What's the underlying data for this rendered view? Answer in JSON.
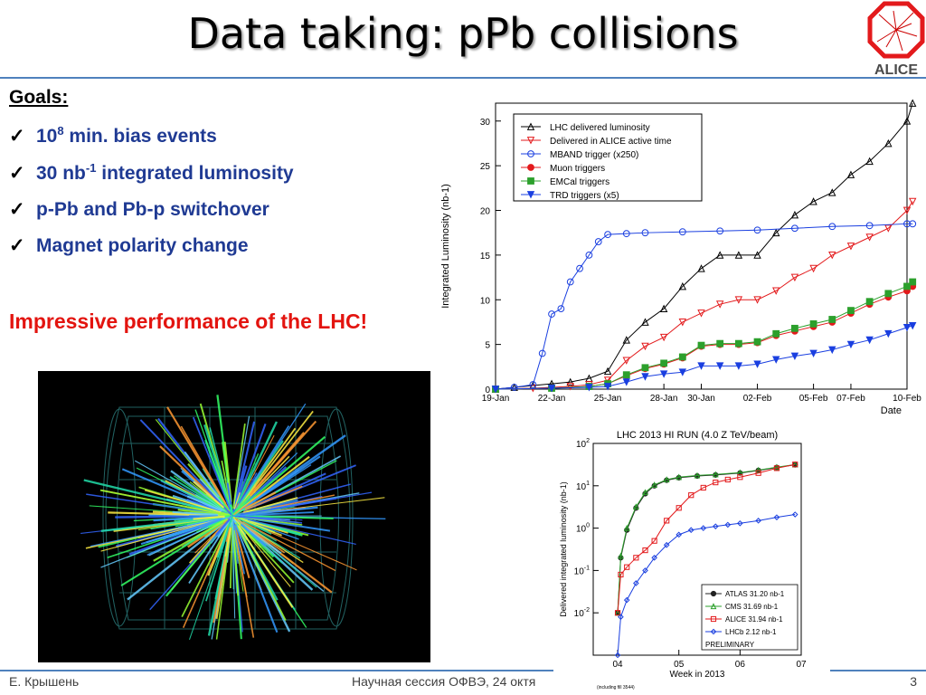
{
  "slide": {
    "title": "Data taking: pPb collisions",
    "logo_text": "ALICE",
    "goals_heading": "Goals:",
    "goals": [
      {
        "check": "✓",
        "pre": "10",
        "sup": "8",
        "post": " min. bias events"
      },
      {
        "check": "✓",
        "pre": "30 nb",
        "sup": "-1",
        "post": " integrated luminosity"
      },
      {
        "check": "✓",
        "pre": "p-Pb and Pb-p switchover",
        "sup": "",
        "post": ""
      },
      {
        "check": "✓",
        "pre": "Magnet polarity change",
        "sup": "",
        "post": ""
      }
    ],
    "highlight": "Impressive performance of the LHC!",
    "footer": {
      "author": "Е. Крышень",
      "session": "Научная сессия ОФВЭ, 24 октя",
      "page": "3"
    },
    "colors": {
      "title_rule": "#4f81bd",
      "goals_text": "#1f3a93",
      "highlight": "#e3140f"
    }
  },
  "chart_data": [
    {
      "type": "line",
      "ylabel": "Integrated Luminosity (nb-1)",
      "xlabel": "Date",
      "x_ticks": [
        "19-Jan",
        "22-Jan",
        "25-Jan",
        "28-Jan",
        "30-Jan",
        "02-Feb",
        "05-Feb",
        "07-Feb",
        "10-Feb"
      ],
      "x_tick_days": [
        0,
        3,
        6,
        9,
        11,
        14,
        17,
        19,
        22
      ],
      "ylim": [
        0,
        32
      ],
      "y_ticks": [
        0,
        5,
        10,
        15,
        20,
        25,
        30
      ],
      "legend_position": "top-left",
      "series": [
        {
          "name": "LHC delivered luminosity",
          "color": "#000000",
          "marker": "triangle-up",
          "x": [
            0,
            1,
            2,
            3,
            4,
            5,
            6,
            7,
            8,
            9,
            10,
            11,
            12,
            13,
            14,
            15,
            16,
            17,
            18,
            19,
            20,
            21,
            22,
            22.3
          ],
          "y": [
            0,
            0.2,
            0.4,
            0.6,
            0.8,
            1.2,
            2.0,
            5.5,
            7.5,
            9.0,
            11.5,
            13.5,
            15.0,
            15.0,
            15.0,
            17.5,
            19.5,
            21.0,
            22.0,
            24.0,
            25.5,
            27.5,
            30.0,
            32.0
          ]
        },
        {
          "name": "Delivered in ALICE active time",
          "color": "#e31a1c",
          "marker": "triangle-down",
          "x": [
            0,
            2,
            4,
            5,
            6,
            7,
            8,
            9,
            10,
            11,
            12,
            13,
            14,
            15,
            16,
            17,
            18,
            19,
            20,
            21,
            22,
            22.3
          ],
          "y": [
            0,
            0.1,
            0.3,
            0.5,
            1.0,
            3.2,
            4.8,
            5.8,
            7.5,
            8.5,
            9.5,
            10.0,
            10.0,
            11.0,
            12.5,
            13.5,
            15.0,
            16.0,
            17.0,
            18.0,
            20.0,
            21.0
          ]
        },
        {
          "name": "MBAND trigger (x250)",
          "color": "#1a3fe0",
          "marker": "circle-open",
          "x": [
            0,
            1,
            2,
            2.5,
            3,
            3.5,
            4,
            4.5,
            5,
            5.5,
            6,
            7,
            8,
            10,
            12,
            14,
            16,
            18,
            20,
            22,
            22.3
          ],
          "y": [
            0,
            0.2,
            0.5,
            4.0,
            8.4,
            9.0,
            12.0,
            13.5,
            15.0,
            16.5,
            17.3,
            17.4,
            17.5,
            17.6,
            17.7,
            17.8,
            18.0,
            18.2,
            18.3,
            18.5,
            18.5
          ]
        },
        {
          "name": "Muon triggers",
          "color": "#e31a1c",
          "marker": "circle",
          "x": [
            0,
            3,
            5,
            6,
            7,
            8,
            9,
            10,
            11,
            12,
            13,
            14,
            15,
            16,
            17,
            18,
            19,
            20,
            21,
            22,
            22.3
          ],
          "y": [
            0,
            0.1,
            0.3,
            0.6,
            1.5,
            2.3,
            2.8,
            3.5,
            4.8,
            5.0,
            5.0,
            5.2,
            6.0,
            6.5,
            7.0,
            7.5,
            8.5,
            9.5,
            10.3,
            11.0,
            11.5
          ]
        },
        {
          "name": "EMCal triggers",
          "color": "#2ca02c",
          "marker": "square",
          "x": [
            0,
            3,
            5,
            6,
            7,
            8,
            9,
            10,
            11,
            12,
            13,
            14,
            15,
            16,
            17,
            18,
            19,
            20,
            21,
            22,
            22.3
          ],
          "y": [
            0,
            0.1,
            0.3,
            0.6,
            1.6,
            2.4,
            2.9,
            3.6,
            4.9,
            5.1,
            5.1,
            5.3,
            6.2,
            6.8,
            7.3,
            7.8,
            8.8,
            9.8,
            10.7,
            11.5,
            12.0
          ]
        },
        {
          "name": "TRD triggers (x5)",
          "color": "#1a3fe0",
          "marker": "triangle-down-filled",
          "x": [
            0,
            3,
            5,
            6,
            7,
            8,
            9,
            10,
            11,
            12,
            13,
            14,
            15,
            16,
            17,
            18,
            19,
            20,
            21,
            22,
            22.3
          ],
          "y": [
            0,
            0.1,
            0.2,
            0.3,
            0.8,
            1.4,
            1.7,
            1.9,
            2.6,
            2.6,
            2.6,
            2.8,
            3.3,
            3.7,
            4.0,
            4.4,
            5.0,
            5.5,
            6.2,
            6.9,
            7.1
          ]
        }
      ]
    },
    {
      "type": "line",
      "title": "LHC 2013 HI RUN (4.0 Z TeV/beam)",
      "xlabel": "Week in 2013",
      "ylabel": "Delivered integrated luminosity (nb-1)",
      "log_y": true,
      "ylim": [
        0.001,
        100
      ],
      "xlim": [
        3.6,
        7.0
      ],
      "x_ticks": [
        "04",
        "05",
        "06",
        "07"
      ],
      "x_tick_values": [
        4,
        5,
        6,
        7
      ],
      "y_ticks": [
        {
          "exp": "-2",
          "value": 0.01
        },
        {
          "exp": "-1",
          "value": 0.1
        },
        {
          "exp": "0",
          "value": 1
        },
        {
          "exp": "1",
          "value": 10
        },
        {
          "exp": "2",
          "value": 100
        }
      ],
      "legend_position": "bottom-right",
      "legend_note": "PRELIMINARY",
      "footnote": "(including fill 3544)",
      "series": [
        {
          "name": "ATLAS 31.20 nb-1",
          "color": "#222222",
          "marker": "circle",
          "x": [
            4.0,
            4.05,
            4.15,
            4.3,
            4.45,
            4.6,
            4.8,
            5.0,
            5.3,
            5.6,
            6.0,
            6.3,
            6.6,
            6.9
          ],
          "y": [
            0.01,
            0.2,
            0.9,
            3.0,
            6.5,
            10.0,
            13.5,
            15.5,
            17.0,
            18.0,
            20.0,
            23.0,
            27.0,
            31.2
          ]
        },
        {
          "name": "CMS 31.69 nb-1",
          "color": "#2ca02c",
          "marker": "triangle-up",
          "x": [
            4.0,
            4.05,
            4.15,
            4.3,
            4.45,
            4.6,
            4.8,
            5.0,
            5.3,
            5.6,
            6.0,
            6.3,
            6.6,
            6.9
          ],
          "y": [
            0.01,
            0.22,
            1.0,
            3.2,
            7.0,
            10.5,
            14.0,
            16.0,
            17.5,
            18.5,
            20.5,
            23.5,
            27.5,
            31.7
          ]
        },
        {
          "name": "ALICE 31.94 nb-1",
          "color": "#e31a1c",
          "marker": "square-open",
          "x": [
            4.0,
            4.05,
            4.15,
            4.3,
            4.45,
            4.6,
            4.8,
            5.0,
            5.2,
            5.4,
            5.6,
            5.8,
            6.0,
            6.3,
            6.6,
            6.9
          ],
          "y": [
            0.01,
            0.08,
            0.12,
            0.2,
            0.3,
            0.5,
            1.5,
            3.0,
            6.0,
            9.0,
            12.0,
            14.0,
            16.0,
            20.0,
            26.0,
            31.9
          ]
        },
        {
          "name": "LHCb 2.12 nb-1",
          "color": "#1a3fe0",
          "marker": "diamond-open",
          "x": [
            4.0,
            4.05,
            4.15,
            4.3,
            4.45,
            4.6,
            4.8,
            5.0,
            5.2,
            5.4,
            5.6,
            5.8,
            6.0,
            6.3,
            6.6,
            6.9
          ],
          "y": [
            0.001,
            0.008,
            0.02,
            0.05,
            0.1,
            0.2,
            0.4,
            0.7,
            0.9,
            1.0,
            1.1,
            1.2,
            1.3,
            1.5,
            1.8,
            2.1
          ]
        }
      ]
    }
  ]
}
